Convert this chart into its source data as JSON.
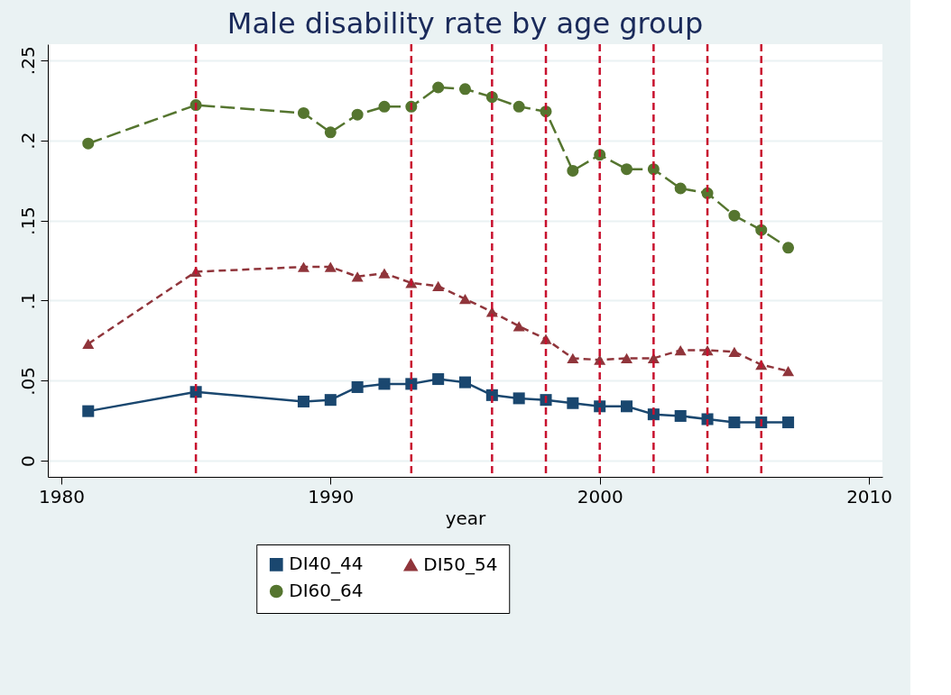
{
  "chart_data": {
    "type": "line",
    "title": "Male disability rate by age group",
    "xlabel": "year",
    "x": [
      1981,
      1985,
      1989,
      1990,
      1991,
      1992,
      1993,
      1994,
      1995,
      1996,
      1997,
      1998,
      1999,
      2000,
      2001,
      2002,
      2003,
      2004,
      2005,
      2006,
      2007
    ],
    "series": [
      {
        "name": "DI40_44",
        "color": "#1a476f",
        "marker": "square",
        "line_style": "solid",
        "values": [
          0.031,
          0.043,
          0.037,
          0.038,
          0.046,
          0.048,
          0.048,
          0.051,
          0.049,
          0.041,
          0.039,
          0.038,
          0.036,
          0.034,
          0.034,
          0.029,
          0.028,
          0.026,
          0.024,
          0.024,
          0.024
        ]
      },
      {
        "name": "DI50_54",
        "color": "#90353b",
        "marker": "triangle",
        "line_style": "dashed",
        "values": [
          0.073,
          0.118,
          0.121,
          0.121,
          0.115,
          0.117,
          0.111,
          0.109,
          0.101,
          0.093,
          0.084,
          0.076,
          0.064,
          0.063,
          0.064,
          0.064,
          0.069,
          0.069,
          0.068,
          0.06,
          0.056
        ]
      },
      {
        "name": "DI60_64",
        "color": "#55752f",
        "marker": "circle",
        "line_style": "longdash",
        "values": [
          0.198,
          0.222,
          0.217,
          0.205,
          0.216,
          0.221,
          0.221,
          0.233,
          0.232,
          0.227,
          0.221,
          0.218,
          0.181,
          0.191,
          0.182,
          0.182,
          0.17,
          0.167,
          0.153,
          0.144,
          0.133
        ]
      }
    ],
    "xlim": [
      1979.5,
      2010.5
    ],
    "xticks": [
      1980,
      1990,
      2000,
      2010
    ],
    "ylim": [
      -0.01,
      0.26
    ],
    "yticks": [
      0,
      {
        "value": 0.05,
        "label": ".05"
      },
      {
        "value": 0.1,
        "label": ".1"
      },
      {
        "value": 0.15,
        "label": ".15"
      },
      {
        "value": 0.2,
        "label": ".2"
      },
      {
        "value": 0.25,
        "label": ".25"
      }
    ],
    "ref_lines": [
      {
        "axis": "x",
        "value": 1985,
        "color": "#c8102e",
        "line_style": "dashed"
      },
      {
        "axis": "x",
        "value": 1993,
        "color": "#c8102e",
        "line_style": "dashed"
      },
      {
        "axis": "x",
        "value": 1996,
        "color": "#c8102e",
        "line_style": "dashed"
      },
      {
        "axis": "x",
        "value": 1998,
        "color": "#c8102e",
        "line_style": "dashed"
      },
      {
        "axis": "x",
        "value": 2000,
        "color": "#c8102e",
        "line_style": "dashed"
      },
      {
        "axis": "x",
        "value": 2002,
        "color": "#c8102e",
        "line_style": "dashed"
      },
      {
        "axis": "x",
        "value": 2004,
        "color": "#c8102e",
        "line_style": "dashed"
      },
      {
        "axis": "x",
        "value": 2006,
        "color": "#c8102e",
        "line_style": "dashed"
      }
    ],
    "grid": "y",
    "legend": "bottom"
  }
}
